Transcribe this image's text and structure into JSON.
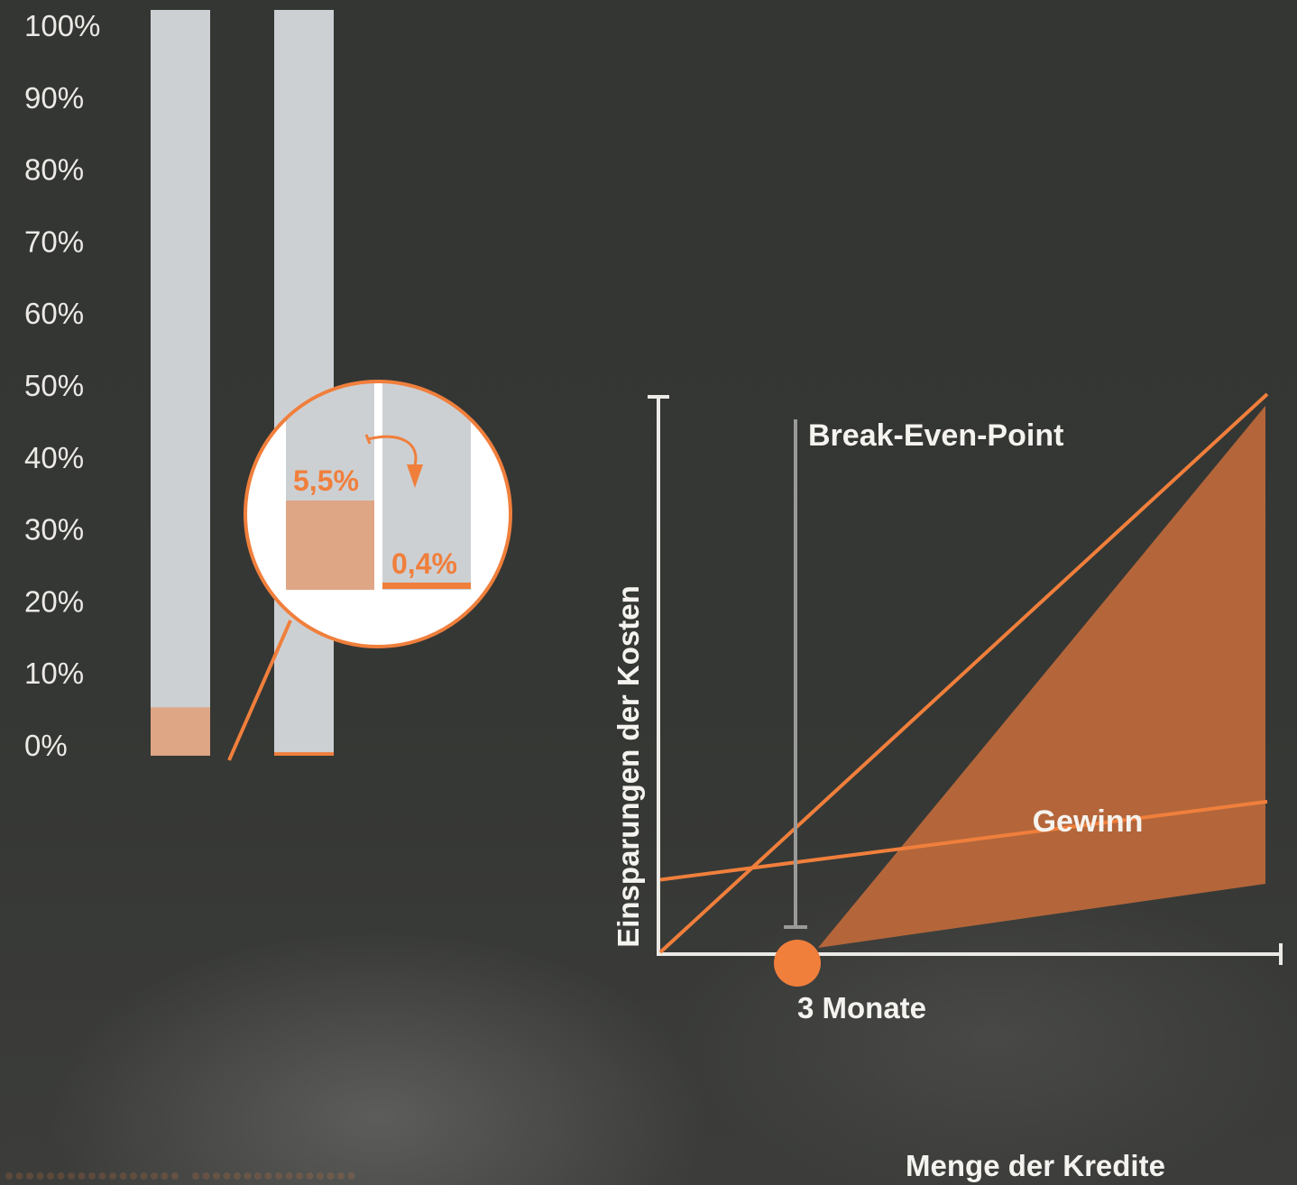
{
  "colors": {
    "background": "#343633",
    "accent": "#f07f3c",
    "bar_track": "#cdd0d3",
    "bar_fill": "#dea684",
    "profit_area": "#b4663a",
    "text_light": "#eceae6"
  },
  "chart_data": [
    {
      "type": "bar",
      "stacked_percent": true,
      "ylim": [
        0,
        100
      ],
      "yticks": [
        "100%",
        "90%",
        "80%",
        "70%",
        "60%",
        "50%",
        "40%",
        "30%",
        "20%",
        "10%",
        "0%"
      ],
      "values": [
        5.5,
        0.4
      ],
      "inset": {
        "label_a": "5,5%",
        "label_b": "0,4%"
      }
    },
    {
      "type": "line",
      "xlabel": "Menge der Kredite",
      "ylabel": "Einsparungen der Kosten",
      "break_even_label": "Break-Even-Point",
      "intersection_label": "3 Monate",
      "area_label": "Gewinn",
      "xlim": [
        0,
        1
      ],
      "ylim": [
        0,
        1
      ],
      "series": [
        {
          "x": [
            0,
            1
          ],
          "y": [
            0.13,
            0.27
          ]
        },
        {
          "x": [
            0,
            1
          ],
          "y": [
            0.0,
            1.0
          ]
        }
      ]
    }
  ]
}
